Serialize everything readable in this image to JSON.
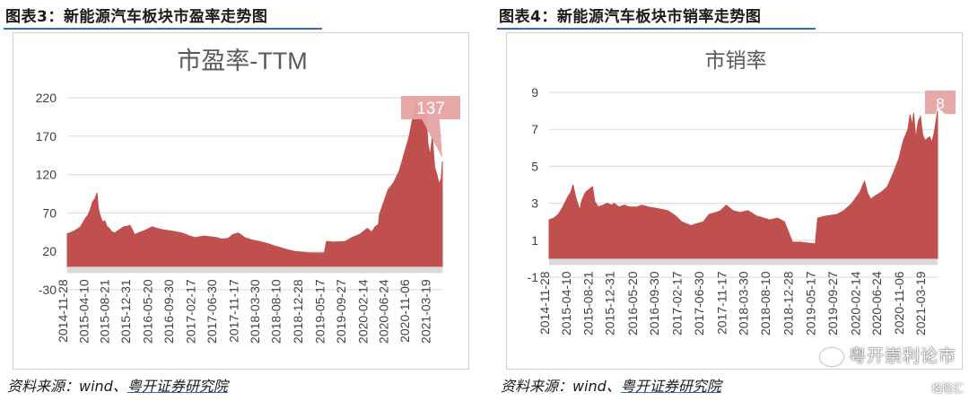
{
  "figures": [
    {
      "heading": "图表3：新能源汽车板块市盈率走势图",
      "source_prefix": "资料来源：wind、",
      "source_org": "粤开证券研究院"
    },
    {
      "heading": "图表4：新能源汽车板块市销率走势图",
      "source_prefix": "资料来源：wind、",
      "source_org": "粤开证券研究院"
    }
  ],
  "watermark": {
    "text": "粤开崇利论市",
    "brand": "格隆汇"
  },
  "colors": {
    "area": "#c0504d",
    "baseline": "#d9d9d9",
    "callout": "#e6a3a3",
    "grid": "#d9d9d9"
  },
  "chart_data": [
    {
      "type": "area",
      "title": "市盈率-TTM",
      "xlabel": "",
      "ylabel": "",
      "ylim": [
        -30,
        220
      ],
      "yticks": [
        -30,
        20,
        70,
        120,
        170,
        220
      ],
      "xticks": [
        "2014-11-28",
        "2015-04-10",
        "2015-08-21",
        "2015-12-31",
        "2016-05-20",
        "2016-09-30",
        "2017-02-17",
        "2017-06-30",
        "2017-11-17",
        "2018-03-30",
        "2018-08-10",
        "2018-12-28",
        "2019-05-17",
        "2019-09-27",
        "2020-02-14",
        "2020-06-24",
        "2020-11-06",
        "2021-03-19"
      ],
      "x_range": [
        "2014-11-28",
        "2021-06-04"
      ],
      "grid": true,
      "annotation": {
        "date": "2021-06-04",
        "value": 137,
        "label": "137"
      },
      "series": [
        {
          "x": [
            "2014-11-28",
            "2014-12-26",
            "2015-01-23",
            "2015-02-20",
            "2015-03-20",
            "2015-04-10",
            "2015-04-24",
            "2015-05-08",
            "2015-05-22",
            "2015-06-05",
            "2015-06-12",
            "2015-06-19",
            "2015-07-03",
            "2015-07-10",
            "2015-07-24",
            "2015-08-07",
            "2015-08-21",
            "2015-09-04",
            "2015-09-25",
            "2015-10-23",
            "2015-11-20",
            "2015-12-18",
            "2015-12-31",
            "2016-01-15",
            "2016-01-29",
            "2016-03-04",
            "2016-04-01",
            "2016-05-20",
            "2016-06-17",
            "2016-07-29",
            "2016-09-30",
            "2016-11-25",
            "2017-01-13",
            "2017-02-17",
            "2017-04-14",
            "2017-06-30",
            "2017-08-04",
            "2017-09-15",
            "2017-10-13",
            "2017-11-17",
            "2017-12-29",
            "2018-02-09",
            "2018-03-30",
            "2018-05-25",
            "2018-07-06",
            "2018-08-10",
            "2018-09-28",
            "2018-11-09",
            "2018-12-28",
            "2019-02-15",
            "2019-03-29",
            "2019-05-17",
            "2019-05-31",
            "2019-07-12",
            "2019-09-27",
            "2019-11-08",
            "2019-12-27",
            "2020-02-14",
            "2020-03-13",
            "2020-04-03",
            "2020-04-24",
            "2020-05-01",
            "2020-06-24",
            "2020-07-31",
            "2020-09-04",
            "2020-10-09",
            "2020-11-06",
            "2020-12-04",
            "2020-12-18",
            "2020-12-31",
            "2021-01-08",
            "2021-01-22",
            "2021-02-05",
            "2021-02-19",
            "2021-03-05",
            "2021-03-19",
            "2021-04-02",
            "2021-04-16",
            "2021-04-30",
            "2021-05-14",
            "2021-05-28",
            "2021-06-04"
          ],
          "values": [
            43,
            45,
            48,
            52,
            62,
            68,
            75,
            85,
            88,
            96,
            78,
            70,
            62,
            58,
            60,
            52,
            50,
            46,
            44,
            48,
            52,
            53,
            54,
            48,
            42,
            45,
            47,
            52,
            50,
            48,
            46,
            44,
            40,
            38,
            40,
            38,
            36,
            37,
            42,
            44,
            38,
            35,
            33,
            30,
            27,
            25,
            22,
            20,
            19,
            18,
            18,
            18,
            33,
            32,
            33,
            38,
            42,
            50,
            45,
            52,
            55,
            68,
            100,
            110,
            125,
            150,
            170,
            200,
            218,
            200,
            190,
            215,
            198,
            205,
            160,
            145,
            170,
            130,
            120,
            108,
            115,
            137
          ]
        }
      ]
    },
    {
      "type": "area",
      "title": "市销率",
      "xlabel": "",
      "ylabel": "",
      "ylim": [
        -1,
        9
      ],
      "yticks": [
        -1,
        1,
        3,
        5,
        7,
        9
      ],
      "xticks": [
        "2014-11-28",
        "2015-04-10",
        "2015-08-21",
        "2015-12-31",
        "2016-05-20",
        "2016-09-30",
        "2017-02-17",
        "2017-06-30",
        "2017-11-17",
        "2018-03-30",
        "2018-08-10",
        "2018-12-28",
        "2019-05-17",
        "2019-09-27",
        "2020-02-14",
        "2020-06-24",
        "2020-11-06",
        "2021-03-19"
      ],
      "x_range": [
        "2014-11-28",
        "2021-06-04"
      ],
      "grid": true,
      "annotation": {
        "date": "2021-06-04",
        "value": 8,
        "label": "8"
      },
      "series": [
        {
          "x": [
            "2014-11-28",
            "2014-12-26",
            "2015-01-23",
            "2015-02-20",
            "2015-03-20",
            "2015-04-10",
            "2015-04-24",
            "2015-05-08",
            "2015-05-22",
            "2015-06-05",
            "2015-06-12",
            "2015-06-19",
            "2015-07-03",
            "2015-07-10",
            "2015-07-24",
            "2015-08-07",
            "2015-08-21",
            "2015-09-04",
            "2015-09-25",
            "2015-10-23",
            "2015-11-20",
            "2015-12-18",
            "2015-12-31",
            "2016-01-15",
            "2016-01-29",
            "2016-03-04",
            "2016-04-01",
            "2016-05-20",
            "2016-06-17",
            "2016-07-29",
            "2016-09-30",
            "2016-11-25",
            "2017-01-13",
            "2017-02-17",
            "2017-04-14",
            "2017-06-30",
            "2017-08-04",
            "2017-09-15",
            "2017-10-13",
            "2017-11-17",
            "2017-12-29",
            "2018-02-09",
            "2018-03-30",
            "2018-05-25",
            "2018-07-06",
            "2018-08-10",
            "2018-09-28",
            "2018-11-09",
            "2018-12-28",
            "2019-02-15",
            "2019-03-29",
            "2019-05-17",
            "2019-05-31",
            "2019-07-12",
            "2019-09-27",
            "2019-11-08",
            "2019-12-27",
            "2020-02-14",
            "2020-03-13",
            "2020-04-03",
            "2020-04-24",
            "2020-05-01",
            "2020-06-24",
            "2020-07-31",
            "2020-09-04",
            "2020-10-09",
            "2020-11-06",
            "2020-12-04",
            "2020-12-18",
            "2020-12-31",
            "2021-01-08",
            "2021-01-22",
            "2021-02-05",
            "2021-02-19",
            "2021-03-05",
            "2021-03-19",
            "2021-04-02",
            "2021-04-16",
            "2021-04-30",
            "2021-05-14",
            "2021-05-28",
            "2021-06-04"
          ],
          "values": [
            2.1,
            2.2,
            2.4,
            2.8,
            3.3,
            3.6,
            4.0,
            3.4,
            3.0,
            2.6,
            3.0,
            3.2,
            3.5,
            3.6,
            3.7,
            3.8,
            3.9,
            3.1,
            2.8,
            2.9,
            3.0,
            2.9,
            3.0,
            2.9,
            2.8,
            2.9,
            2.8,
            2.8,
            2.9,
            2.8,
            2.7,
            2.6,
            2.3,
            2.0,
            1.8,
            2.0,
            2.4,
            2.5,
            2.6,
            2.9,
            2.6,
            2.5,
            2.6,
            2.3,
            2.2,
            2.1,
            2.2,
            2.0,
            0.9,
            0.9,
            0.85,
            0.8,
            2.2,
            2.3,
            2.4,
            2.6,
            3.0,
            3.6,
            4.2,
            3.5,
            3.2,
            3.3,
            3.6,
            3.9,
            4.6,
            5.4,
            6.4,
            7.0,
            7.8,
            7.2,
            7.9,
            6.5,
            7.4,
            7.7,
            6.7,
            6.4,
            6.5,
            6.6,
            6.3,
            6.8,
            7.6,
            8.0
          ]
        }
      ]
    }
  ]
}
